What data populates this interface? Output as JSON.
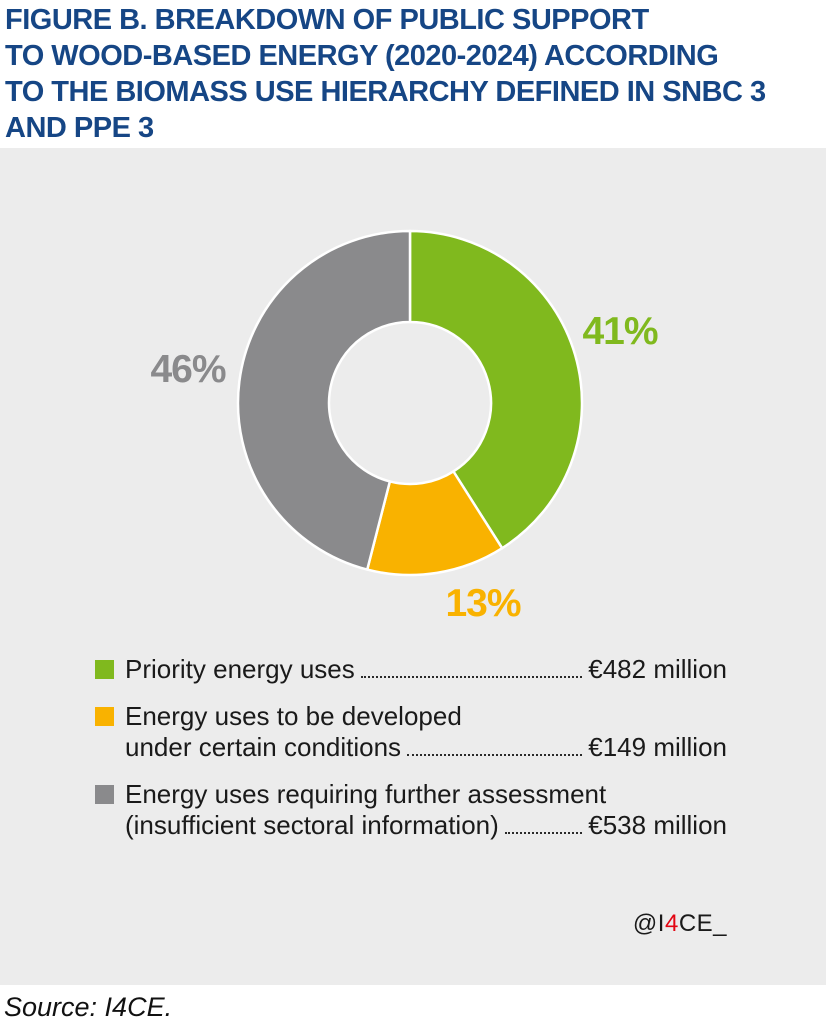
{
  "figure": {
    "title": "FIGURE B. BREAKDOWN OF PUBLIC SUPPORT\nTO WOOD-BASED ENERGY (2020-2024) ACCORDING\nTO THE BIOMASS USE HIERARCHY DEFINED IN SNBC 3\nAND PPE 3",
    "title_color": "#164685",
    "panel_background": "#ECECEC",
    "source_note": "Source: I4CE."
  },
  "attribution": {
    "prefix": "@I",
    "highlight": "4",
    "suffix": "CE_",
    "highlight_color": "#E30613"
  },
  "chart_data": {
    "type": "pie",
    "subtype": "donut",
    "title": "Breakdown of public support to wood-based energy (2020-2024) according to the biomass use hierarchy defined in SNBC 3 and PPE 3",
    "unit": "€ million",
    "start_angle": "top",
    "direction": "clockwise",
    "donut_hole_ratio": 0.47,
    "legend_position": "below",
    "slices": [
      {
        "label": "Priority energy uses",
        "legend_lines": [
          "Priority energy uses"
        ],
        "pct": 41,
        "pct_label": "41%",
        "value": 482,
        "value_label": "€482 million",
        "color": "#80B91E"
      },
      {
        "label": "Energy uses to be developed under certain conditions",
        "legend_lines": [
          "Energy uses to be developed",
          "under certain conditions"
        ],
        "pct": 13,
        "pct_label": "13%",
        "value": 149,
        "value_label": "€149 million",
        "color": "#F9B200"
      },
      {
        "label": "Energy uses requiring further assessment (insufficient sectoral information)",
        "legend_lines": [
          "Energy uses requiring further assessment",
          "(insufficient sectoral information)"
        ],
        "pct": 46,
        "pct_label": "46%",
        "value": 538,
        "value_label": "€538 million",
        "color": "#8A8A8C"
      }
    ]
  }
}
